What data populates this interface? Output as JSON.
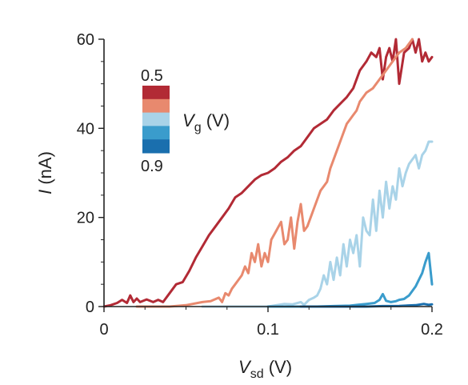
{
  "chart_data": {
    "type": "line",
    "xlabel": {
      "symbol": "V",
      "subscript": "sd",
      "unit": "(V)"
    },
    "ylabel": {
      "symbol": "I",
      "unit": "(nA)"
    },
    "xlim": [
      0,
      0.2
    ],
    "ylim": [
      0,
      60
    ],
    "xticks": [
      0,
      0.1,
      0.2
    ],
    "xtick_labels": [
      "0",
      "0.1",
      "0.2"
    ],
    "yticks": [
      0,
      20,
      40,
      60
    ],
    "ytick_labels": [
      "0",
      "20",
      "40",
      "60"
    ],
    "grid": false,
    "legend": {
      "placement": "top-left",
      "title": {
        "symbol": "V",
        "subscript": "g",
        "unit": "(V)"
      },
      "top_label": "0.5",
      "bottom_label": "0.9",
      "colors": [
        "#b22a35",
        "#e8896e",
        "#a9d3e8",
        "#3a9ccc",
        "#1a6fae"
      ]
    },
    "series": [
      {
        "color": "#b22a35",
        "points": [
          [
            0,
            0
          ],
          [
            0.004,
            0.3
          ],
          [
            0.008,
            0.8
          ],
          [
            0.011,
            1.5
          ],
          [
            0.014,
            0.8
          ],
          [
            0.016,
            2.5
          ],
          [
            0.018,
            1
          ],
          [
            0.02,
            1.8
          ],
          [
            0.022,
            1
          ],
          [
            0.026,
            1.6
          ],
          [
            0.03,
            1
          ],
          [
            0.033,
            1.5
          ],
          [
            0.036,
            1
          ],
          [
            0.04,
            3
          ],
          [
            0.044,
            5
          ],
          [
            0.048,
            5.5
          ],
          [
            0.052,
            8
          ],
          [
            0.056,
            11
          ],
          [
            0.06,
            13.5
          ],
          [
            0.064,
            16
          ],
          [
            0.068,
            18
          ],
          [
            0.072,
            20
          ],
          [
            0.076,
            22
          ],
          [
            0.08,
            24.5
          ],
          [
            0.084,
            25.5
          ],
          [
            0.088,
            27
          ],
          [
            0.092,
            28.5
          ],
          [
            0.096,
            29.5
          ],
          [
            0.1,
            30
          ],
          [
            0.104,
            31
          ],
          [
            0.108,
            32.5
          ],
          [
            0.112,
            33.5
          ],
          [
            0.116,
            35
          ],
          [
            0.12,
            36
          ],
          [
            0.124,
            38
          ],
          [
            0.128,
            40
          ],
          [
            0.132,
            41
          ],
          [
            0.136,
            42
          ],
          [
            0.14,
            44
          ],
          [
            0.144,
            45.5
          ],
          [
            0.148,
            47
          ],
          [
            0.152,
            49
          ],
          [
            0.156,
            53
          ],
          [
            0.16,
            55
          ],
          [
            0.163,
            57
          ],
          [
            0.166,
            56
          ],
          [
            0.168,
            58
          ],
          [
            0.17,
            51
          ],
          [
            0.172,
            56
          ],
          [
            0.174,
            58
          ],
          [
            0.176,
            55
          ],
          [
            0.178,
            60
          ],
          [
            0.18,
            50
          ],
          [
            0.183,
            57
          ],
          [
            0.186,
            58
          ],
          [
            0.188,
            60
          ],
          [
            0.19,
            57
          ],
          [
            0.192,
            60
          ],
          [
            0.194,
            55
          ],
          [
            0.196,
            57
          ],
          [
            0.198,
            55
          ],
          [
            0.2,
            56
          ]
        ]
      },
      {
        "color": "#e8896e",
        "points": [
          [
            0.02,
            0
          ],
          [
            0.04,
            0
          ],
          [
            0.05,
            0.3
          ],
          [
            0.06,
            1
          ],
          [
            0.065,
            1.2
          ],
          [
            0.07,
            2
          ],
          [
            0.072,
            1
          ],
          [
            0.074,
            3
          ],
          [
            0.076,
            2.5
          ],
          [
            0.078,
            4
          ],
          [
            0.08,
            5
          ],
          [
            0.082,
            6
          ],
          [
            0.084,
            7
          ],
          [
            0.086,
            9
          ],
          [
            0.088,
            7.5
          ],
          [
            0.09,
            12
          ],
          [
            0.092,
            10
          ],
          [
            0.094,
            14
          ],
          [
            0.096,
            9
          ],
          [
            0.098,
            12
          ],
          [
            0.1,
            10
          ],
          [
            0.102,
            15
          ],
          [
            0.105,
            17
          ],
          [
            0.108,
            19
          ],
          [
            0.11,
            14
          ],
          [
            0.112,
            15
          ],
          [
            0.114,
            20
          ],
          [
            0.116,
            13
          ],
          [
            0.118,
            19
          ],
          [
            0.12,
            23
          ],
          [
            0.122,
            17
          ],
          [
            0.124,
            18
          ],
          [
            0.126,
            20
          ],
          [
            0.128,
            22
          ],
          [
            0.13,
            24
          ],
          [
            0.132,
            26
          ],
          [
            0.134,
            27
          ],
          [
            0.136,
            28
          ],
          [
            0.138,
            31
          ],
          [
            0.14,
            33
          ],
          [
            0.142,
            35
          ],
          [
            0.144,
            37
          ],
          [
            0.146,
            39
          ],
          [
            0.148,
            41
          ],
          [
            0.15,
            42
          ],
          [
            0.152,
            43
          ],
          [
            0.154,
            44
          ],
          [
            0.156,
            46
          ],
          [
            0.158,
            47
          ],
          [
            0.16,
            48
          ],
          [
            0.164,
            49
          ],
          [
            0.168,
            51
          ],
          [
            0.172,
            53
          ],
          [
            0.176,
            55
          ],
          [
            0.18,
            57
          ],
          [
            0.184,
            58
          ],
          [
            0.188,
            60
          ]
        ]
      },
      {
        "color": "#a9d3e8",
        "points": [
          [
            0.06,
            0
          ],
          [
            0.1,
            0
          ],
          [
            0.105,
            0.3
          ],
          [
            0.11,
            0.6
          ],
          [
            0.115,
            0.5
          ],
          [
            0.12,
            1
          ],
          [
            0.122,
            0.4
          ],
          [
            0.125,
            1.5
          ],
          [
            0.128,
            2
          ],
          [
            0.13,
            2.5
          ],
          [
            0.132,
            4
          ],
          [
            0.134,
            7
          ],
          [
            0.136,
            5
          ],
          [
            0.138,
            10
          ],
          [
            0.14,
            6
          ],
          [
            0.142,
            11
          ],
          [
            0.144,
            7
          ],
          [
            0.146,
            14
          ],
          [
            0.148,
            9
          ],
          [
            0.15,
            15
          ],
          [
            0.152,
            12
          ],
          [
            0.154,
            16
          ],
          [
            0.156,
            9
          ],
          [
            0.158,
            20
          ],
          [
            0.16,
            17
          ],
          [
            0.162,
            16
          ],
          [
            0.164,
            24
          ],
          [
            0.166,
            17
          ],
          [
            0.168,
            26
          ],
          [
            0.17,
            20
          ],
          [
            0.172,
            28
          ],
          [
            0.174,
            22
          ],
          [
            0.176,
            27
          ],
          [
            0.178,
            24
          ],
          [
            0.18,
            31
          ],
          [
            0.182,
            27
          ],
          [
            0.184,
            30
          ],
          [
            0.186,
            32
          ],
          [
            0.188,
            33
          ],
          [
            0.19,
            34
          ],
          [
            0.192,
            31
          ],
          [
            0.194,
            34
          ],
          [
            0.196,
            35
          ],
          [
            0.198,
            37
          ],
          [
            0.2,
            37
          ]
        ]
      },
      {
        "color": "#3a9ccc",
        "points": [
          [
            0.1,
            0
          ],
          [
            0.13,
            0
          ],
          [
            0.14,
            0.1
          ],
          [
            0.15,
            0.2
          ],
          [
            0.155,
            0.4
          ],
          [
            0.16,
            0.6
          ],
          [
            0.165,
            0.8
          ],
          [
            0.168,
            1.5
          ],
          [
            0.17,
            2.8
          ],
          [
            0.172,
            1.3
          ],
          [
            0.175,
            1
          ],
          [
            0.178,
            1.2
          ],
          [
            0.18,
            1.5
          ],
          [
            0.183,
            1.7
          ],
          [
            0.186,
            2.5
          ],
          [
            0.188,
            3.5
          ],
          [
            0.19,
            4.5
          ],
          [
            0.192,
            6
          ],
          [
            0.194,
            7.5
          ],
          [
            0.196,
            10
          ],
          [
            0.198,
            12
          ],
          [
            0.2,
            5
          ]
        ]
      },
      {
        "color": "#1a6fae",
        "points": [
          [
            0.12,
            0
          ],
          [
            0.16,
            0
          ],
          [
            0.17,
            0.1
          ],
          [
            0.18,
            0.15
          ],
          [
            0.19,
            0.3
          ],
          [
            0.195,
            0.6
          ],
          [
            0.198,
            0.4
          ],
          [
            0.2,
            0.5
          ]
        ]
      }
    ]
  }
}
